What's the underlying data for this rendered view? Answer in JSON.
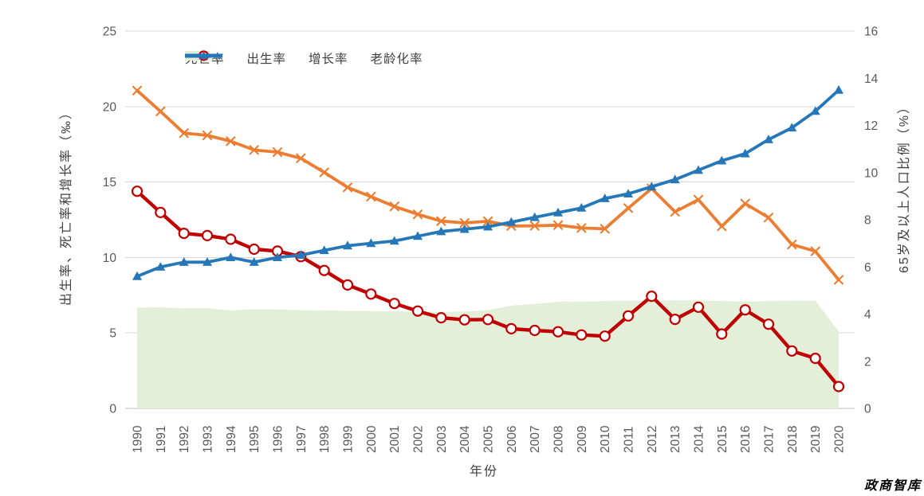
{
  "watermark": "政商智库",
  "colors": {
    "death_area": "#E3EFD9",
    "birth_line": "#EC7D31",
    "growth_line": "#C00000",
    "aging_line": "#2577B8",
    "gridline": "#D9D9D9",
    "baseline": "#BFBFBF",
    "tick_text": "#595959",
    "label_text": "#404040",
    "background": "#FFFFFF"
  },
  "chart_data": {
    "type": "combo-area-line",
    "title": "",
    "xlabel": "年份",
    "ylabel_left": "出生率、死亡率和增长率（‰）",
    "ylabel_right": "65岁及以上人口比例（%）",
    "ylim_left": [
      0,
      25
    ],
    "ylim_right": [
      0,
      16
    ],
    "left_ticks": [
      0,
      5,
      10,
      15,
      20,
      25
    ],
    "right_ticks": [
      0,
      2,
      4,
      6,
      8,
      10,
      12,
      14,
      16
    ],
    "grid": "horizontal",
    "legend_position": "top",
    "x": [
      1990,
      1991,
      1992,
      1993,
      1994,
      1995,
      1996,
      1997,
      1998,
      1999,
      2000,
      2001,
      2002,
      2003,
      2004,
      2005,
      2006,
      2007,
      2008,
      2009,
      2010,
      2011,
      2012,
      2013,
      2014,
      2015,
      2016,
      2017,
      2018,
      2019,
      2020
    ],
    "series": [
      {
        "id": "death-rate",
        "name": "死亡率",
        "type": "area",
        "axis": "left",
        "marker": "none",
        "color": "#E3EFD9",
        "values": [
          6.67,
          6.7,
          6.64,
          6.64,
          6.49,
          6.57,
          6.56,
          6.51,
          6.5,
          6.46,
          6.45,
          6.43,
          6.41,
          6.4,
          6.42,
          6.51,
          6.81,
          6.93,
          7.06,
          7.08,
          7.11,
          7.14,
          7.15,
          7.16,
          7.16,
          7.11,
          7.09,
          7.11,
          7.13,
          7.14,
          5.1
        ]
      },
      {
        "id": "birth-rate",
        "name": "出生率",
        "type": "line",
        "axis": "left",
        "marker": "x",
        "color": "#EC7D31",
        "values": [
          21.06,
          19.68,
          18.24,
          18.09,
          17.7,
          17.12,
          16.98,
          16.57,
          15.64,
          14.64,
          14.03,
          13.38,
          12.86,
          12.41,
          12.29,
          12.4,
          12.09,
          12.1,
          12.14,
          11.95,
          11.9,
          13.27,
          14.57,
          13.03,
          13.83,
          12.07,
          13.57,
          12.64,
          10.86,
          10.41,
          8.52
        ]
      },
      {
        "id": "growth-rate",
        "name": "增长率",
        "type": "line",
        "axis": "left",
        "marker": "circle-open",
        "color": "#C00000",
        "values": [
          14.39,
          12.98,
          11.6,
          11.45,
          11.21,
          10.55,
          10.42,
          10.06,
          9.14,
          8.18,
          7.58,
          6.95,
          6.45,
          6.01,
          5.87,
          5.89,
          5.28,
          5.17,
          5.08,
          4.87,
          4.79,
          6.13,
          7.43,
          5.9,
          6.71,
          4.93,
          6.53,
          5.58,
          3.81,
          3.32,
          1.45
        ]
      },
      {
        "id": "aging-rate",
        "name": "老龄化率",
        "type": "line",
        "axis": "right",
        "marker": "triangle",
        "color": "#2577B8",
        "values": [
          5.6,
          6.0,
          6.2,
          6.2,
          6.4,
          6.2,
          6.4,
          6.5,
          6.7,
          6.9,
          7.0,
          7.1,
          7.3,
          7.5,
          7.6,
          7.7,
          7.9,
          8.1,
          8.3,
          8.5,
          8.9,
          9.1,
          9.4,
          9.7,
          10.1,
          10.5,
          10.8,
          11.4,
          11.9,
          12.6,
          13.5
        ]
      }
    ]
  }
}
